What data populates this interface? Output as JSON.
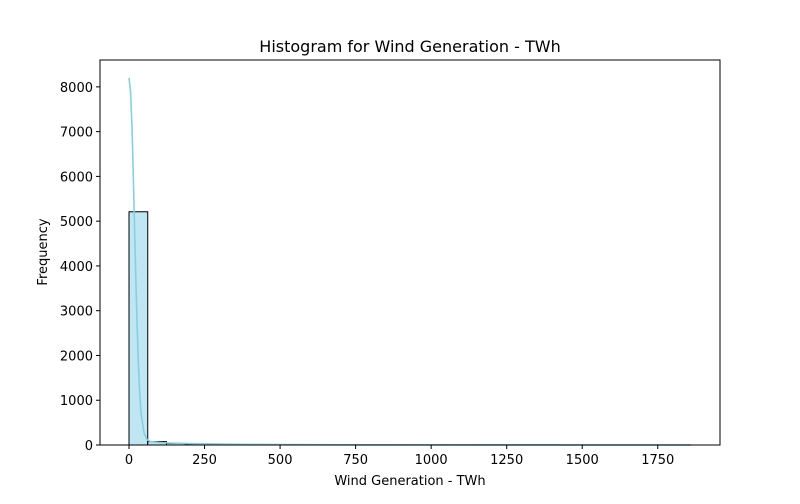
{
  "chart_data": {
    "type": "bar",
    "title": "Histogram for Wind Generation - TWh",
    "xlabel": "Wind Generation - TWh",
    "ylabel": "Frequency",
    "xlim": [
      -96,
      1956
    ],
    "ylim": [
      0,
      8600
    ],
    "xticks": [
      0,
      250,
      500,
      750,
      1000,
      1250,
      1500,
      1750
    ],
    "yticks": [
      0,
      1000,
      2000,
      3000,
      4000,
      5000,
      6000,
      7000,
      8000
    ],
    "grid": false,
    "bin_edges": [
      0,
      62,
      124,
      186,
      248,
      310,
      372,
      434,
      496,
      558,
      620,
      682,
      744,
      806,
      868,
      930,
      992,
      1054,
      1116,
      1178,
      1240,
      1302,
      1364,
      1426,
      1488,
      1550,
      1612,
      1674,
      1736,
      1798,
      1860
    ],
    "counts": [
      5210,
      75,
      35,
      22,
      15,
      12,
      10,
      8,
      7,
      6,
      5,
      5,
      4,
      4,
      3,
      3,
      3,
      2,
      2,
      2,
      2,
      2,
      2,
      1,
      1,
      1,
      1,
      1,
      1,
      1
    ],
    "kde": {
      "x": [
        0,
        5,
        10,
        15,
        20,
        25,
        30,
        35,
        40,
        50,
        60,
        70,
        80,
        100,
        130,
        160,
        200,
        250,
        300,
        400,
        500,
        600,
        800,
        1000,
        1200,
        1400,
        1600,
        1860
      ],
      "y": [
        8200,
        7900,
        7100,
        5800,
        4400,
        3100,
        2000,
        1200,
        700,
        260,
        120,
        80,
        70,
        55,
        45,
        40,
        33,
        26,
        20,
        14,
        10,
        7,
        4,
        3,
        2,
        1.5,
        1,
        0.5
      ]
    },
    "colors": {
      "bar_fill": "#bfe6f2",
      "bar_edge": "#000000",
      "kde_line": "#87cfe0"
    }
  }
}
